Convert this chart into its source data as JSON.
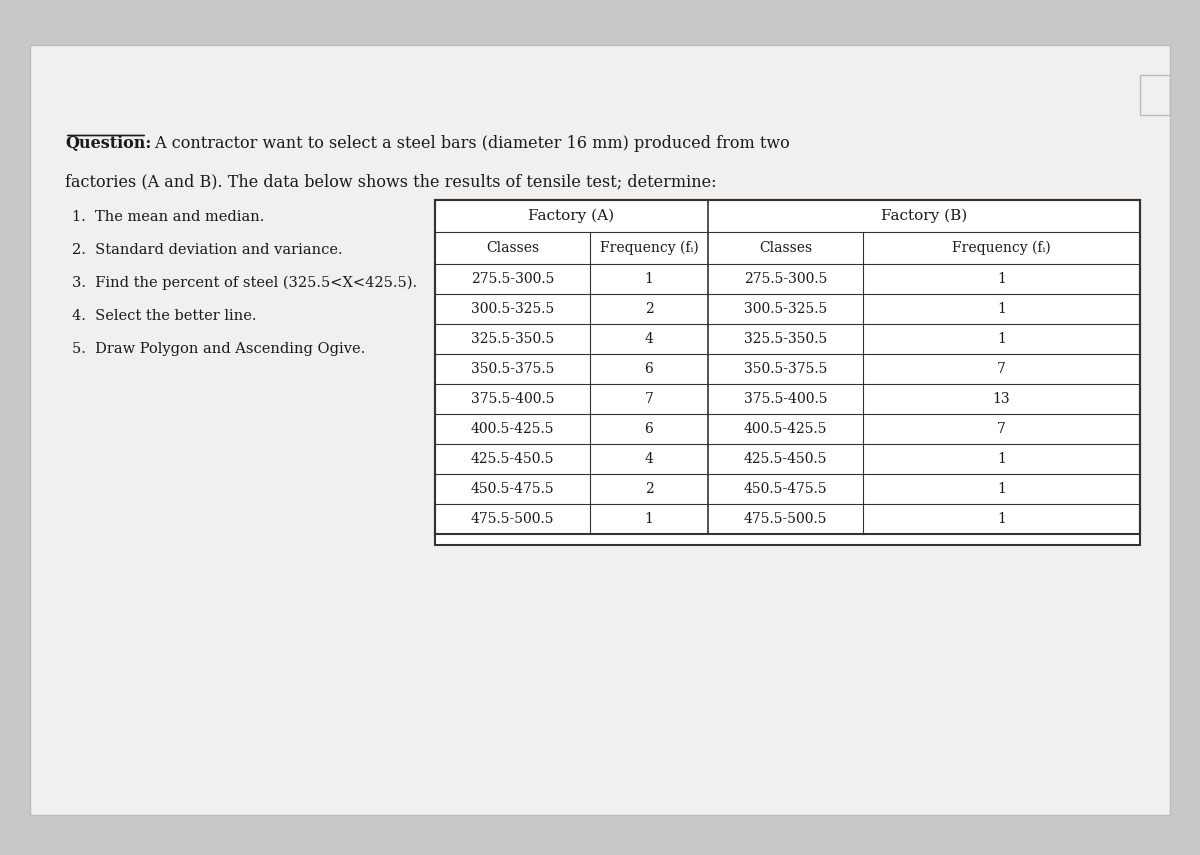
{
  "question_line1": "Question: A contractor want to select a steel bars (diameter 16 mm) produced from two",
  "question_line2": "factories (A and B). The data below shows the results of tensile test; determine:",
  "question_bold": "Question",
  "bullet_points": [
    "1.  The mean and median.",
    "2.  Standard deviation and variance.",
    "3.  Find the percent of steel (325.5<X<425.5).",
    "4.  Select the better line.",
    "5.  Draw Polygon and Ascending Ogive."
  ],
  "factory_a_header": "Factory (A)",
  "factory_b_header": "Factory (B)",
  "col_header_classes": "Classes",
  "col_header_freq_a": "Frequency (fᵢ)",
  "col_header_freq_b": "Frequency (fᵢ)",
  "classes": [
    "275.5-300.5",
    "300.5-325.5",
    "325.5-350.5",
    "350.5-375.5",
    "375.5-400.5",
    "400.5-425.5",
    "425.5-450.5",
    "450.5-475.5",
    "475.5-500.5"
  ],
  "freq_a": [
    1,
    2,
    4,
    6,
    7,
    6,
    4,
    2,
    1
  ],
  "freq_b": [
    1,
    1,
    1,
    7,
    13,
    7,
    1,
    1,
    1
  ],
  "bg_color": "#e8e8e8",
  "paper_color": "#f0f0f0",
  "table_bg": "#ffffff",
  "text_color": "#1a1a1a",
  "border_color": "#333333"
}
